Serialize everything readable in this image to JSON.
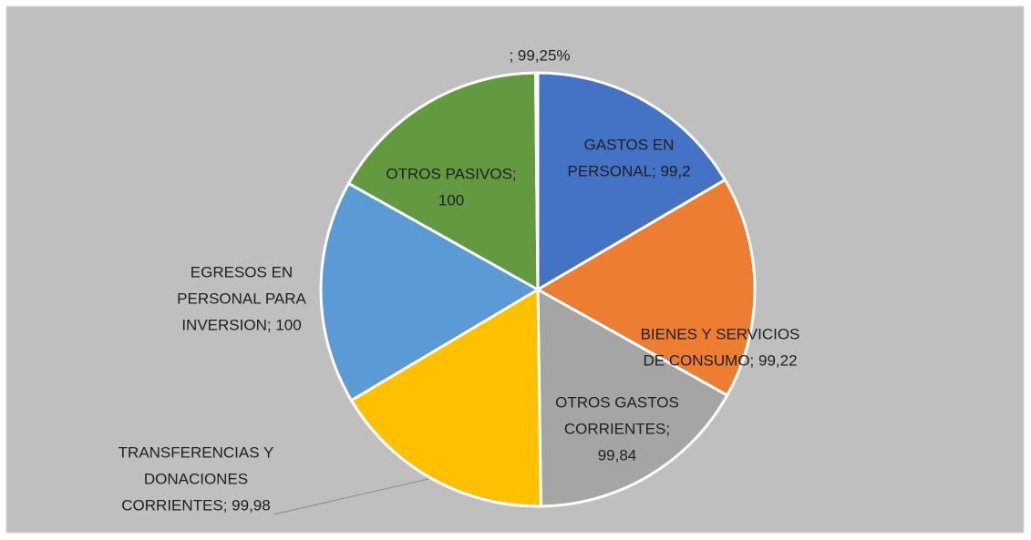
{
  "chart_data": {
    "type": "pie",
    "values": [
      99.2,
      99.22,
      99.84,
      99.98,
      100,
      100,
      0.9925
    ],
    "value_labels": [
      [
        "GASTOS EN",
        "PERSONAL; 99,2"
      ],
      [
        "BIENES Y SERVICIOS",
        "DE CONSUMO; 99,22"
      ],
      [
        "OTROS GASTOS",
        "CORRIENTES;",
        "99,84"
      ],
      [
        "TRANSFERENCIAS Y",
        "DONACIONES",
        "CORRIENTES; 99,98"
      ],
      [
        "EGRESOS EN",
        "PERSONAL PARA",
        "INVERSION; 100"
      ],
      [
        "OTROS PASIVOS;",
        "100"
      ],
      [
        "; 99,25%"
      ]
    ],
    "colors": [
      "#4472c4",
      "#ed7d31",
      "#a5a5a5",
      "#ffc000",
      "#5b9bd5",
      "#639a3f",
      "#8fa8c8"
    ]
  }
}
